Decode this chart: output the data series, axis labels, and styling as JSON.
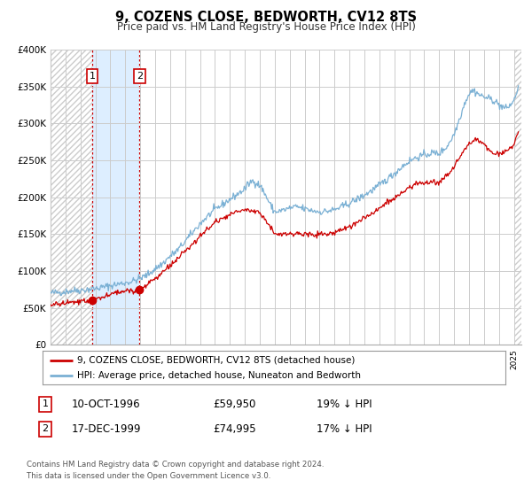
{
  "title": "9, COZENS CLOSE, BEDWORTH, CV12 8TS",
  "subtitle": "Price paid vs. HM Land Registry's House Price Index (HPI)",
  "legend_line1": "9, COZENS CLOSE, BEDWORTH, CV12 8TS (detached house)",
  "legend_line2": "HPI: Average price, detached house, Nuneaton and Bedworth",
  "footer1": "Contains HM Land Registry data © Crown copyright and database right 2024.",
  "footer2": "This data is licensed under the Open Government Licence v3.0.",
  "sale1_label": "1",
  "sale1_date": "10-OCT-1996",
  "sale1_price": "£59,950",
  "sale1_hpi": "19% ↓ HPI",
  "sale1_year": 1996.78,
  "sale1_value": 59950,
  "sale2_label": "2",
  "sale2_date": "17-DEC-1999",
  "sale2_price": "£74,995",
  "sale2_hpi": "17% ↓ HPI",
  "sale2_year": 1999.96,
  "sale2_value": 74995,
  "red_color": "#cc0000",
  "blue_color": "#7ab0d4",
  "highlight_color": "#ddeeff",
  "grid_color": "#cccccc",
  "hatch_color": "#cccccc",
  "ylim_max": 400000,
  "xlim_min": 1994.0,
  "xlim_max": 2025.5,
  "hpi_years": [
    1994.0,
    1994.5,
    1995.0,
    1995.5,
    1996.0,
    1996.5,
    1997.0,
    1997.5,
    1998.0,
    1998.5,
    1999.0,
    1999.5,
    2000.0,
    2000.5,
    2001.0,
    2001.5,
    2002.0,
    2002.5,
    2003.0,
    2003.5,
    2004.0,
    2004.5,
    2005.0,
    2005.5,
    2006.0,
    2006.5,
    2007.0,
    2007.25,
    2007.5,
    2007.75,
    2008.0,
    2008.25,
    2008.5,
    2008.75,
    2009.0,
    2009.5,
    2010.0,
    2010.5,
    2011.0,
    2011.5,
    2012.0,
    2012.5,
    2013.0,
    2013.5,
    2014.0,
    2014.5,
    2015.0,
    2015.5,
    2016.0,
    2016.5,
    2017.0,
    2017.5,
    2018.0,
    2018.5,
    2019.0,
    2019.5,
    2020.0,
    2020.5,
    2021.0,
    2021.25,
    2021.5,
    2021.75,
    2022.0,
    2022.25,
    2022.5,
    2022.75,
    2023.0,
    2023.25,
    2023.5,
    2023.75,
    2024.0,
    2024.25,
    2024.5,
    2024.75,
    2025.0,
    2025.3
  ],
  "hpi_values": [
    70000,
    71000,
    72000,
    73500,
    74000,
    75000,
    76000,
    78000,
    80000,
    82000,
    84000,
    86000,
    90000,
    95000,
    103000,
    110000,
    120000,
    128000,
    140000,
    152000,
    164000,
    174000,
    183000,
    190000,
    197000,
    204000,
    211000,
    218000,
    222000,
    220000,
    216000,
    208000,
    198000,
    188000,
    180000,
    182000,
    185000,
    187000,
    184000,
    182000,
    180000,
    181000,
    183000,
    187000,
    192000,
    197000,
    203000,
    209000,
    216000,
    224000,
    232000,
    241000,
    249000,
    254000,
    257000,
    260000,
    259000,
    268000,
    285000,
    300000,
    315000,
    330000,
    340000,
    345000,
    342000,
    338000,
    336000,
    334000,
    333000,
    330000,
    325000,
    322000,
    320000,
    325000,
    330000,
    350000
  ],
  "red_years": [
    1994.0,
    1994.5,
    1995.0,
    1995.5,
    1996.0,
    1996.5,
    1996.78,
    1997.0,
    1997.5,
    1998.0,
    1998.5,
    1999.0,
    1999.5,
    1999.96,
    2000.0,
    2000.5,
    2001.0,
    2001.5,
    2002.0,
    2002.5,
    2003.0,
    2003.5,
    2004.0,
    2004.5,
    2005.0,
    2005.5,
    2006.0,
    2006.5,
    2007.0,
    2007.5,
    2008.0,
    2008.5,
    2009.0,
    2009.25,
    2009.5,
    2010.0,
    2010.5,
    2011.0,
    2011.5,
    2012.0,
    2012.5,
    2013.0,
    2013.5,
    2014.0,
    2014.5,
    2015.0,
    2015.5,
    2016.0,
    2016.5,
    2017.0,
    2017.5,
    2018.0,
    2018.5,
    2019.0,
    2019.5,
    2020.0,
    2020.5,
    2021.0,
    2021.5,
    2022.0,
    2022.5,
    2023.0,
    2023.5,
    2024.0,
    2024.5,
    2025.0,
    2025.3
  ],
  "red_values": [
    54000,
    55000,
    56500,
    57500,
    58000,
    59000,
    59950,
    62000,
    65000,
    68000,
    71000,
    73000,
    74000,
    74995,
    76000,
    82000,
    90000,
    98000,
    107000,
    116000,
    126000,
    136000,
    147000,
    157000,
    165000,
    172000,
    176000,
    180000,
    183000,
    182000,
    180000,
    165000,
    152000,
    150000,
    150000,
    150000,
    151000,
    150000,
    149000,
    149000,
    150000,
    152000,
    156000,
    161000,
    166000,
    172000,
    178000,
    185000,
    192000,
    198000,
    205000,
    212000,
    218000,
    220000,
    220000,
    220000,
    228000,
    242000,
    258000,
    272000,
    278000,
    272000,
    262000,
    258000,
    262000,
    270000,
    288000
  ]
}
